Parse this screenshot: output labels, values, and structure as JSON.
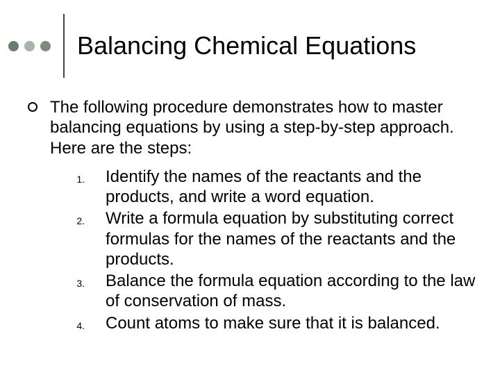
{
  "colors": {
    "dot1": "#6d7c6e",
    "dot2": "#a9b4a8",
    "dot3": "#7f8a7c",
    "vline": "#444444",
    "background": "#ffffff",
    "text": "#000000"
  },
  "title": "Balancing Chemical Equations",
  "intro": "The following procedure demonstrates how to master balancing equations by using a step-by-step approach. Here are the steps:",
  "steps": [
    {
      "num": "1.",
      "text": "Identify the names of the reactants and the products, and write a word equation."
    },
    {
      "num": "2.",
      "text": "Write a formula equation by substituting correct formulas for the names of the reactants and the products."
    },
    {
      "num": "3.",
      "text": "Balance the formula equation according to the law of conservation of mass."
    },
    {
      "num": "4.",
      "text": "Count atoms to make sure that it is balanced."
    }
  ],
  "typography": {
    "title_fontsize": 36,
    "body_fontsize": 24,
    "stepnum_fontsize": 14,
    "font_family": "Arial"
  }
}
